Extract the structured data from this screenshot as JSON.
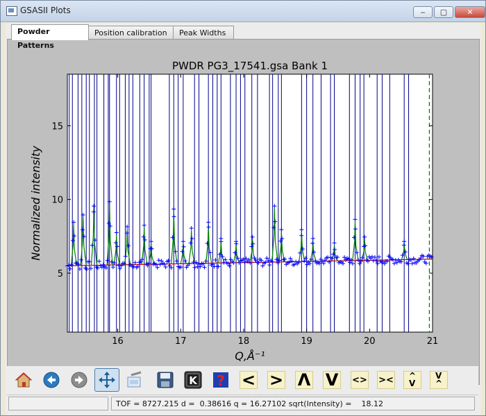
{
  "window": {
    "title": "GSASII Plots"
  },
  "titlebar_buttons": {
    "minimize": "‒",
    "maximize": "▢",
    "close": "✕"
  },
  "tabs": [
    {
      "label": "Powder Patterns",
      "active": true
    },
    {
      "label": "Position calibration",
      "active": false
    },
    {
      "label": "Peak Widths",
      "active": false
    }
  ],
  "chart_data": {
    "type": "scatter",
    "title": "PWDR PG3_17541.gsa Bank 1",
    "xlabel": "Q,Å⁻¹",
    "ylabel": "Normalized intensity",
    "xlim": [
      15.2,
      21.0
    ],
    "ylim": [
      1.0,
      18.5
    ],
    "xticks": [
      16,
      17,
      18,
      19,
      20,
      21
    ],
    "yticks": [
      5,
      10,
      15
    ],
    "reflection_markers_color": "#00008b",
    "reflection_markers_x": [
      15.23,
      15.28,
      15.37,
      15.43,
      15.5,
      15.55,
      15.63,
      15.67,
      15.78,
      15.85,
      15.87,
      15.98,
      16.03,
      16.12,
      16.18,
      16.24,
      16.35,
      16.42,
      16.5,
      16.53,
      16.82,
      16.89,
      16.96,
      17.04,
      17.22,
      17.29,
      17.44,
      17.51,
      17.58,
      17.64,
      17.79,
      17.88,
      17.95,
      18.02,
      18.13,
      18.22,
      18.41,
      18.46,
      18.55,
      18.6,
      18.92,
      19.0,
      19.1,
      19.23,
      19.38,
      19.44,
      19.68,
      19.77,
      19.85,
      19.91,
      20.12,
      20.2,
      20.32,
      20.55,
      20.62
    ],
    "excluded_limit_x": 20.95,
    "background": {
      "color": "#cc0000",
      "x": [
        15.2,
        21.0
      ],
      "y": [
        5.5,
        5.95
      ]
    },
    "peaks": [
      {
        "x": 15.3,
        "y": 8.3
      },
      {
        "x": 15.45,
        "y": 8.8
      },
      {
        "x": 15.62,
        "y": 9.4
      },
      {
        "x": 15.87,
        "y": 9.7
      },
      {
        "x": 15.98,
        "y": 7.6
      },
      {
        "x": 16.15,
        "y": 8.0
      },
      {
        "x": 16.42,
        "y": 8.1
      },
      {
        "x": 16.53,
        "y": 7.0
      },
      {
        "x": 16.89,
        "y": 9.2
      },
      {
        "x": 17.04,
        "y": 7.0
      },
      {
        "x": 17.17,
        "y": 7.9
      },
      {
        "x": 17.44,
        "y": 8.3
      },
      {
        "x": 17.64,
        "y": 7.2
      },
      {
        "x": 17.88,
        "y": 7.0
      },
      {
        "x": 18.14,
        "y": 7.3
      },
      {
        "x": 18.49,
        "y": 9.4
      },
      {
        "x": 18.6,
        "y": 7.8
      },
      {
        "x": 18.92,
        "y": 7.8
      },
      {
        "x": 19.1,
        "y": 7.2
      },
      {
        "x": 19.44,
        "y": 6.9
      },
      {
        "x": 19.77,
        "y": 8.5
      },
      {
        "x": 19.92,
        "y": 7.3
      },
      {
        "x": 20.55,
        "y": 7.0
      }
    ],
    "observed_color": "#0000ff",
    "calculated_color": "#008000",
    "grid": false,
    "legend": "none"
  },
  "toolbar": {
    "buttons": [
      {
        "name": "home-icon"
      },
      {
        "name": "back-arrow-icon"
      },
      {
        "name": "forward-arrow-icon"
      },
      {
        "name": "pan-icon"
      },
      {
        "name": "zoom-icon"
      },
      {
        "name": "save-icon"
      },
      {
        "name": "keypress-icon"
      },
      {
        "name": "help-icon"
      }
    ],
    "text_buttons": [
      "<",
      ">",
      "Λ",
      "V",
      "<>",
      "><",
      "^\nV",
      "V\n^"
    ]
  },
  "status": {
    "text": "TOF = 8727.215 d =  0.38616 q = 16.27102 sqrt(Intensity) =    18.12"
  }
}
